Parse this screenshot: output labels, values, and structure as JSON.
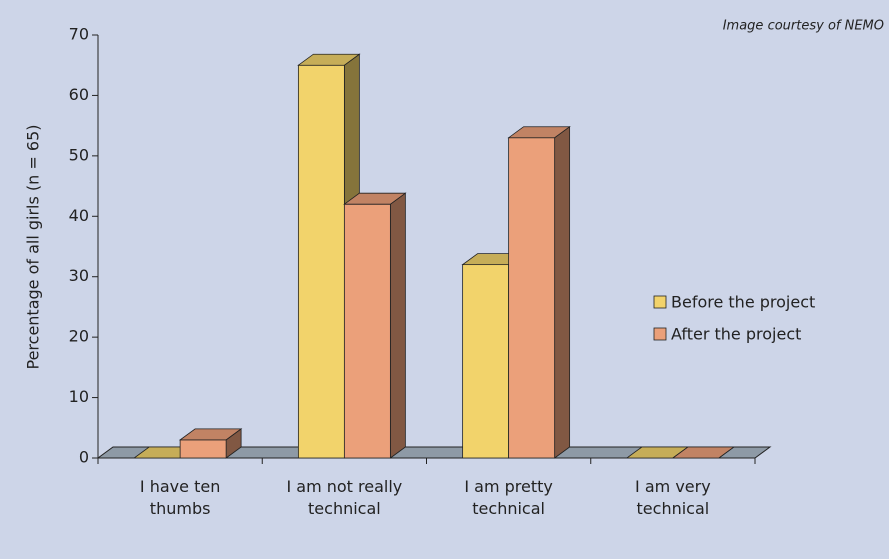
{
  "chart_data": {
    "type": "bar3d",
    "annotation": "Image courtesy of NEMO",
    "y_label": "Percentage of all girls (n = 65)",
    "categories": [
      "I have ten thumbs",
      "I am not really technical",
      "I am pretty technical",
      "I am very technical"
    ],
    "series": [
      {
        "name": "Before the project",
        "color": "#f2d36b",
        "values": [
          0,
          65,
          32,
          0
        ]
      },
      {
        "name": "After the project",
        "color": "#eba07a",
        "values": [
          3,
          42,
          53,
          0
        ]
      }
    ],
    "ylim": [
      0,
      70
    ],
    "yticks": [
      0,
      10,
      20,
      30,
      40,
      50,
      60,
      70
    ],
    "legend": "right"
  }
}
